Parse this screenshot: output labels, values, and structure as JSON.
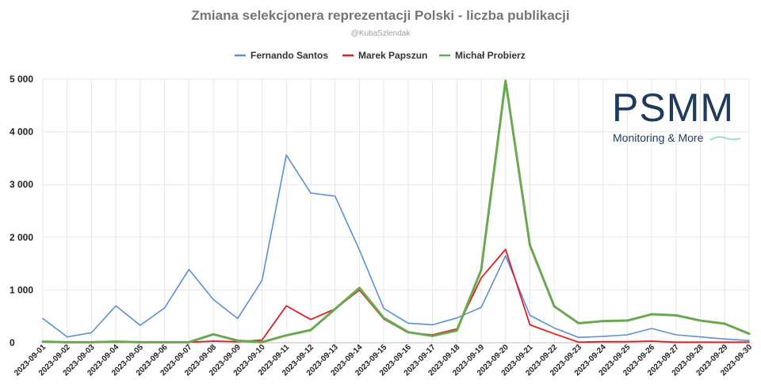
{
  "chart_data": {
    "type": "line",
    "title": "Zmiana selekcjonera reprezentacji Polski - liczba publikacji",
    "subtitle": "@KubaSzlendak",
    "xlabel": "",
    "ylabel": "",
    "ylim": [
      0,
      5000
    ],
    "yticks": [
      0,
      1000,
      2000,
      3000,
      4000,
      5000
    ],
    "ytick_labels": [
      "0",
      "1 000",
      "2 000",
      "3 000",
      "4 000",
      "5 000"
    ],
    "grid": "vertical and horizontal",
    "legend_position": "top-center",
    "categories": [
      "2023-09-01",
      "2023-09-02",
      "2023-09-03",
      "2023-09-04",
      "2023-09-05",
      "2023-09-06",
      "2023-09-07",
      "2023-09-08",
      "2023-09-09",
      "2023-09-10",
      "2023-09-11",
      "2023-09-12",
      "2023-09-13",
      "2023-09-14",
      "2023-09-15",
      "2023-09-16",
      "2023-09-17",
      "2023-09-18",
      "2023-09-19",
      "2023-09-20",
      "2023-09-21",
      "2023-09-22",
      "2023-09-23",
      "2023-09-24",
      "2023-09-25",
      "2023-09-26",
      "2023-09-27",
      "2023-09-28",
      "2023-09-29",
      "2023-09-30"
    ],
    "series": [
      {
        "name": "Fernando Santos",
        "color": "#5b8fd6",
        "stroke": 1.6,
        "values": [
          460,
          110,
          190,
          700,
          330,
          660,
          1390,
          820,
          460,
          1180,
          3560,
          2840,
          2780,
          1760,
          650,
          370,
          340,
          470,
          670,
          1650,
          520,
          280,
          100,
          120,
          150,
          270,
          150,
          110,
          70,
          40
        ]
      },
      {
        "name": "Marek Papszun",
        "color": "#e02020",
        "stroke": 1.8,
        "values": [
          20,
          10,
          10,
          10,
          10,
          10,
          10,
          30,
          20,
          50,
          700,
          440,
          640,
          1000,
          450,
          190,
          150,
          260,
          1230,
          1770,
          340,
          170,
          10,
          20,
          20,
          30,
          10,
          10,
          10,
          10
        ]
      },
      {
        "name": "Michał Probierz",
        "color": "#6aa84f",
        "stroke": 3,
        "values": [
          20,
          10,
          10,
          20,
          10,
          10,
          10,
          160,
          40,
          10,
          140,
          240,
          640,
          1040,
          470,
          200,
          130,
          230,
          1380,
          4970,
          1850,
          690,
          370,
          410,
          420,
          540,
          520,
          420,
          360,
          170
        ]
      }
    ]
  },
  "watermark": {
    "logo_text": "PSMM",
    "logo_subtext": "Monitoring & More",
    "logo_color": "#1f3a5c",
    "accent_color": "#9be3c0"
  }
}
